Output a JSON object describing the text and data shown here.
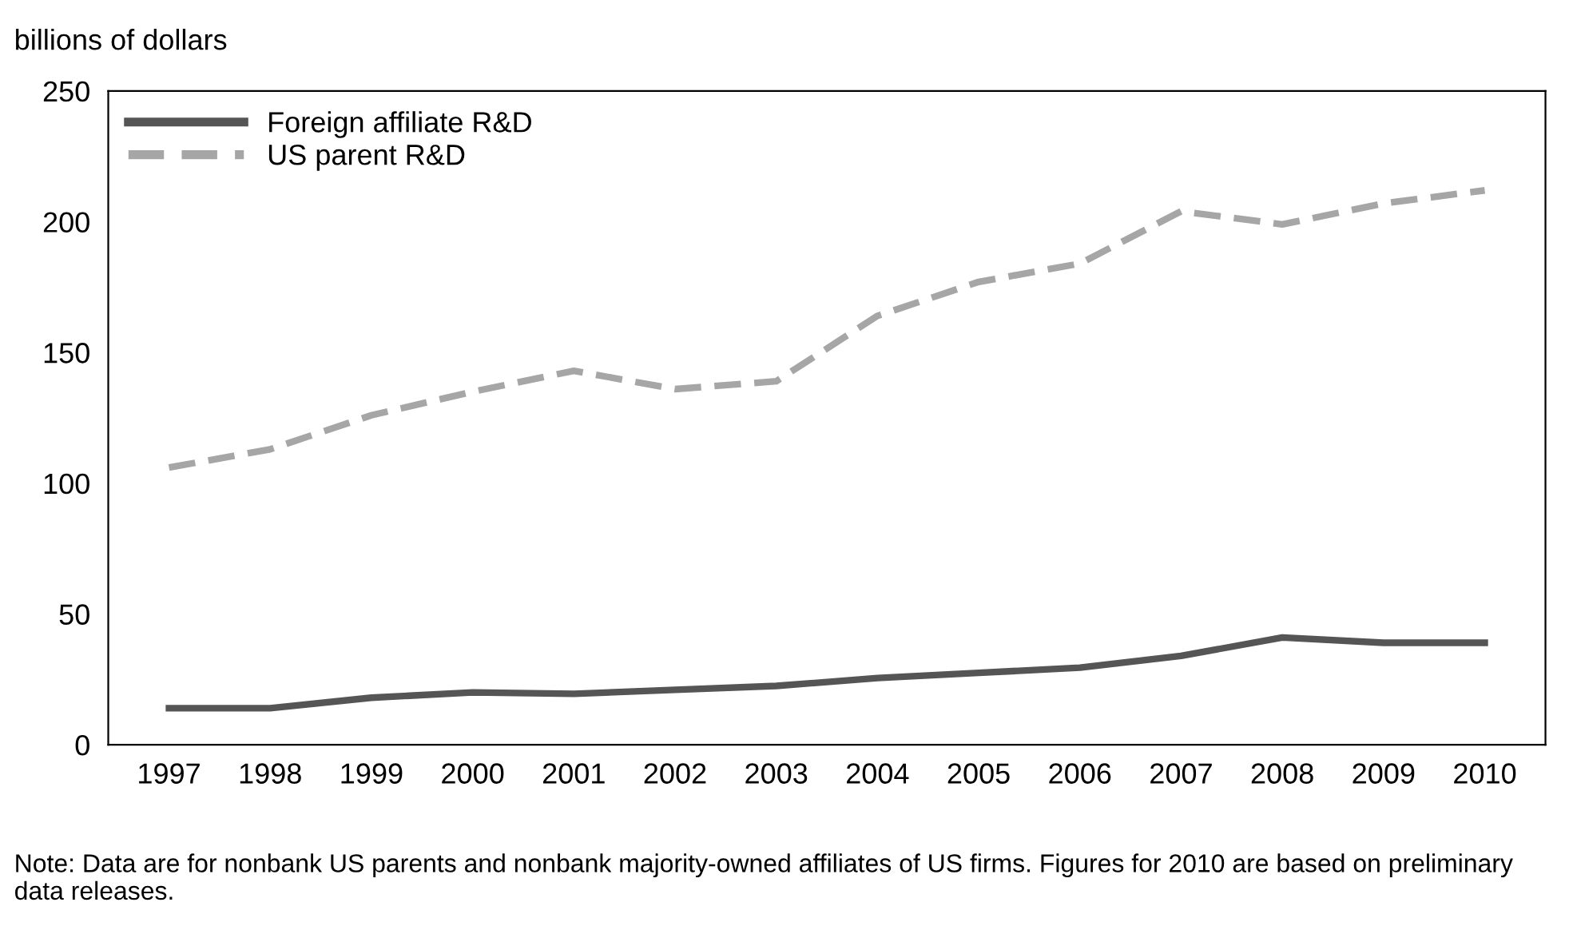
{
  "chart_data": {
    "type": "line",
    "ylabel": "billions of dollars",
    "categories": [
      "1997",
      "1998",
      "1999",
      "2000",
      "2001",
      "2002",
      "2003",
      "2004",
      "2005",
      "2006",
      "2007",
      "2008",
      "2009",
      "2010"
    ],
    "series": [
      {
        "name": "Foreign affiliate R&D",
        "color": "#555555",
        "line_style": "solid",
        "values": [
          14,
          14,
          18,
          20,
          19.5,
          21,
          22.5,
          25.5,
          27.5,
          29.5,
          34,
          41,
          39,
          39
        ]
      },
      {
        "name": "US parent R&D",
        "color": "#a6a6a6",
        "line_style": "dashed",
        "values": [
          106,
          113,
          126,
          135,
          143,
          136,
          139,
          164,
          177,
          184,
          204,
          199,
          207,
          212
        ]
      }
    ],
    "ylim": [
      0,
      250
    ],
    "yticks": [
      0,
      50,
      100,
      150,
      200,
      250
    ],
    "grid": false,
    "legend": "top left",
    "marker": "none",
    "annotations": [
      "Note: Data are for nonbank US parents and nonbank majority-owned affiliates of US firms. Figures for 2010 are based on preliminary data releases."
    ]
  }
}
